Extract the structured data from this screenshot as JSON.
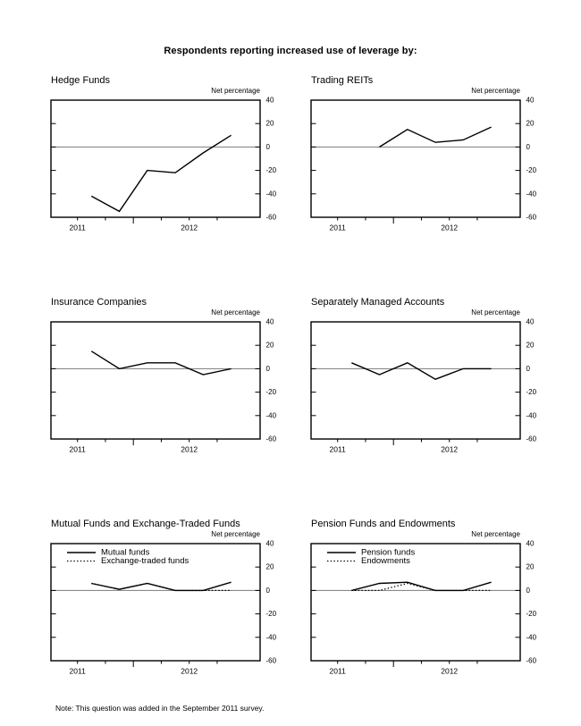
{
  "page": {
    "title": "Respondents reporting increased use of leverage by:",
    "note": "Note: This question was added in the September 2011 survey."
  },
  "colors": {
    "line": "#000000",
    "zero_line": "#8a8a8a",
    "text": "#000000",
    "background": "#ffffff"
  },
  "chart_data": [
    {
      "type": "line",
      "title": "Hedge Funds",
      "ylabel": "Net percentage",
      "ylim": [
        -60,
        40
      ],
      "yticks": [
        40,
        20,
        0,
        -20,
        -40,
        -60
      ],
      "x_year_labels": [
        {
          "label": "2011",
          "tick_index": 0
        },
        {
          "label": "2012",
          "tick_index": 4
        }
      ],
      "legend": false,
      "series": [
        {
          "name": "Hedge funds",
          "line": "solid",
          "values": [
            -42,
            -55,
            -20,
            -22,
            -5,
            10
          ]
        }
      ]
    },
    {
      "type": "line",
      "title": "Trading REITs",
      "ylabel": "Net percentage",
      "ylim": [
        -60,
        40
      ],
      "yticks": [
        40,
        20,
        0,
        -20,
        -40,
        -60
      ],
      "x_year_labels": [
        {
          "label": "2011",
          "tick_index": 0
        },
        {
          "label": "2012",
          "tick_index": 4
        }
      ],
      "legend": false,
      "series": [
        {
          "name": "Trading REITs",
          "line": "solid",
          "values": [
            null,
            0,
            15,
            4,
            6,
            17
          ]
        }
      ]
    },
    {
      "type": "line",
      "title": "Insurance Companies",
      "ylabel": "Net percentage",
      "ylim": [
        -60,
        40
      ],
      "yticks": [
        40,
        20,
        0,
        -20,
        -40,
        -60
      ],
      "x_year_labels": [
        {
          "label": "2011",
          "tick_index": 0
        },
        {
          "label": "2012",
          "tick_index": 4
        }
      ],
      "legend": false,
      "series": [
        {
          "name": "Insurance companies",
          "line": "solid",
          "values": [
            15,
            0,
            5,
            5,
            -5,
            0
          ]
        }
      ]
    },
    {
      "type": "line",
      "title": "Separately Managed Accounts",
      "ylabel": "Net percentage",
      "ylim": [
        -60,
        40
      ],
      "yticks": [
        40,
        20,
        0,
        -20,
        -40,
        -60
      ],
      "x_year_labels": [
        {
          "label": "2011",
          "tick_index": 0
        },
        {
          "label": "2012",
          "tick_index": 4
        }
      ],
      "legend": false,
      "series": [
        {
          "name": "Separately managed accounts",
          "line": "solid",
          "values": [
            5,
            -5,
            5,
            -9,
            0,
            0
          ]
        }
      ]
    },
    {
      "type": "line",
      "title": "Mutual Funds and Exchange-Traded Funds",
      "ylabel": "Net percentage",
      "ylim": [
        -60,
        40
      ],
      "yticks": [
        40,
        20,
        0,
        -20,
        -40,
        -60
      ],
      "x_year_labels": [
        {
          "label": "2011",
          "tick_index": 0
        },
        {
          "label": "2012",
          "tick_index": 4
        }
      ],
      "legend": true,
      "series": [
        {
          "name": "Mutual funds",
          "line": "solid",
          "values": [
            6,
            1,
            6,
            0,
            0,
            7
          ]
        },
        {
          "name": "Exchange-traded funds",
          "line": "dotted",
          "values": [
            6,
            1,
            6,
            0,
            0,
            0
          ]
        }
      ]
    },
    {
      "type": "line",
      "title": "Pension Funds and Endowments",
      "ylabel": "Net percentage",
      "ylim": [
        -60,
        40
      ],
      "yticks": [
        40,
        20,
        0,
        -20,
        -40,
        -60
      ],
      "x_year_labels": [
        {
          "label": "2011",
          "tick_index": 0
        },
        {
          "label": "2012",
          "tick_index": 4
        }
      ],
      "legend": true,
      "series": [
        {
          "name": "Pension funds",
          "line": "solid",
          "values": [
            0,
            6,
            7,
            0,
            0,
            7
          ]
        },
        {
          "name": "Endowments",
          "line": "dotted",
          "values": [
            0,
            0,
            6,
            0,
            0,
            0
          ]
        }
      ]
    }
  ]
}
